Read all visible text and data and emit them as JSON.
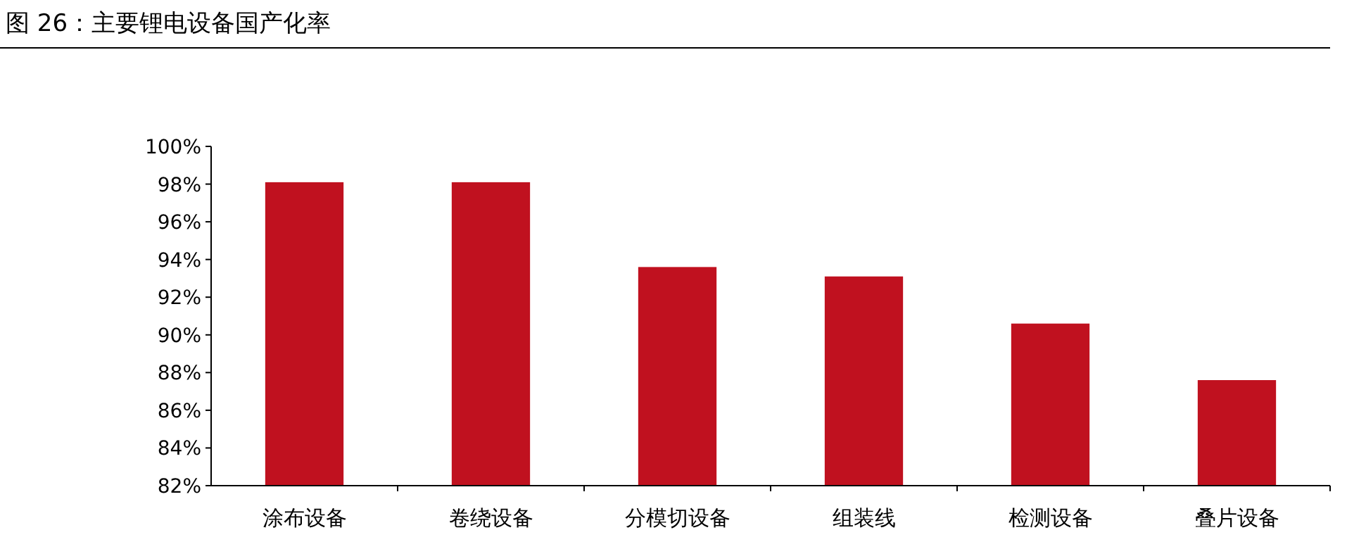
{
  "chart_data": {
    "type": "bar",
    "title": "图 26：主要锂电设备国产化率",
    "categories": [
      "涂布设备",
      "卷绕设备",
      "分模切设备",
      "组装线",
      "检测设备",
      "叠片设备"
    ],
    "values": [
      98.1,
      98.1,
      93.6,
      93.1,
      90.6,
      87.6
    ],
    "color": "#c0111f",
    "ylim": [
      82,
      100
    ],
    "yticks": [
      {
        "value": 82,
        "label": "82%"
      },
      {
        "value": 84,
        "label": "84%"
      },
      {
        "value": 86,
        "label": "86%"
      },
      {
        "value": 88,
        "label": "88%"
      },
      {
        "value": 90,
        "label": "90%"
      },
      {
        "value": 92,
        "label": "92%"
      },
      {
        "value": 94,
        "label": "94%"
      },
      {
        "value": 96,
        "label": "96%"
      },
      {
        "value": 98,
        "label": "98%"
      },
      {
        "value": 100,
        "label": "100%"
      }
    ],
    "grid": false
  }
}
